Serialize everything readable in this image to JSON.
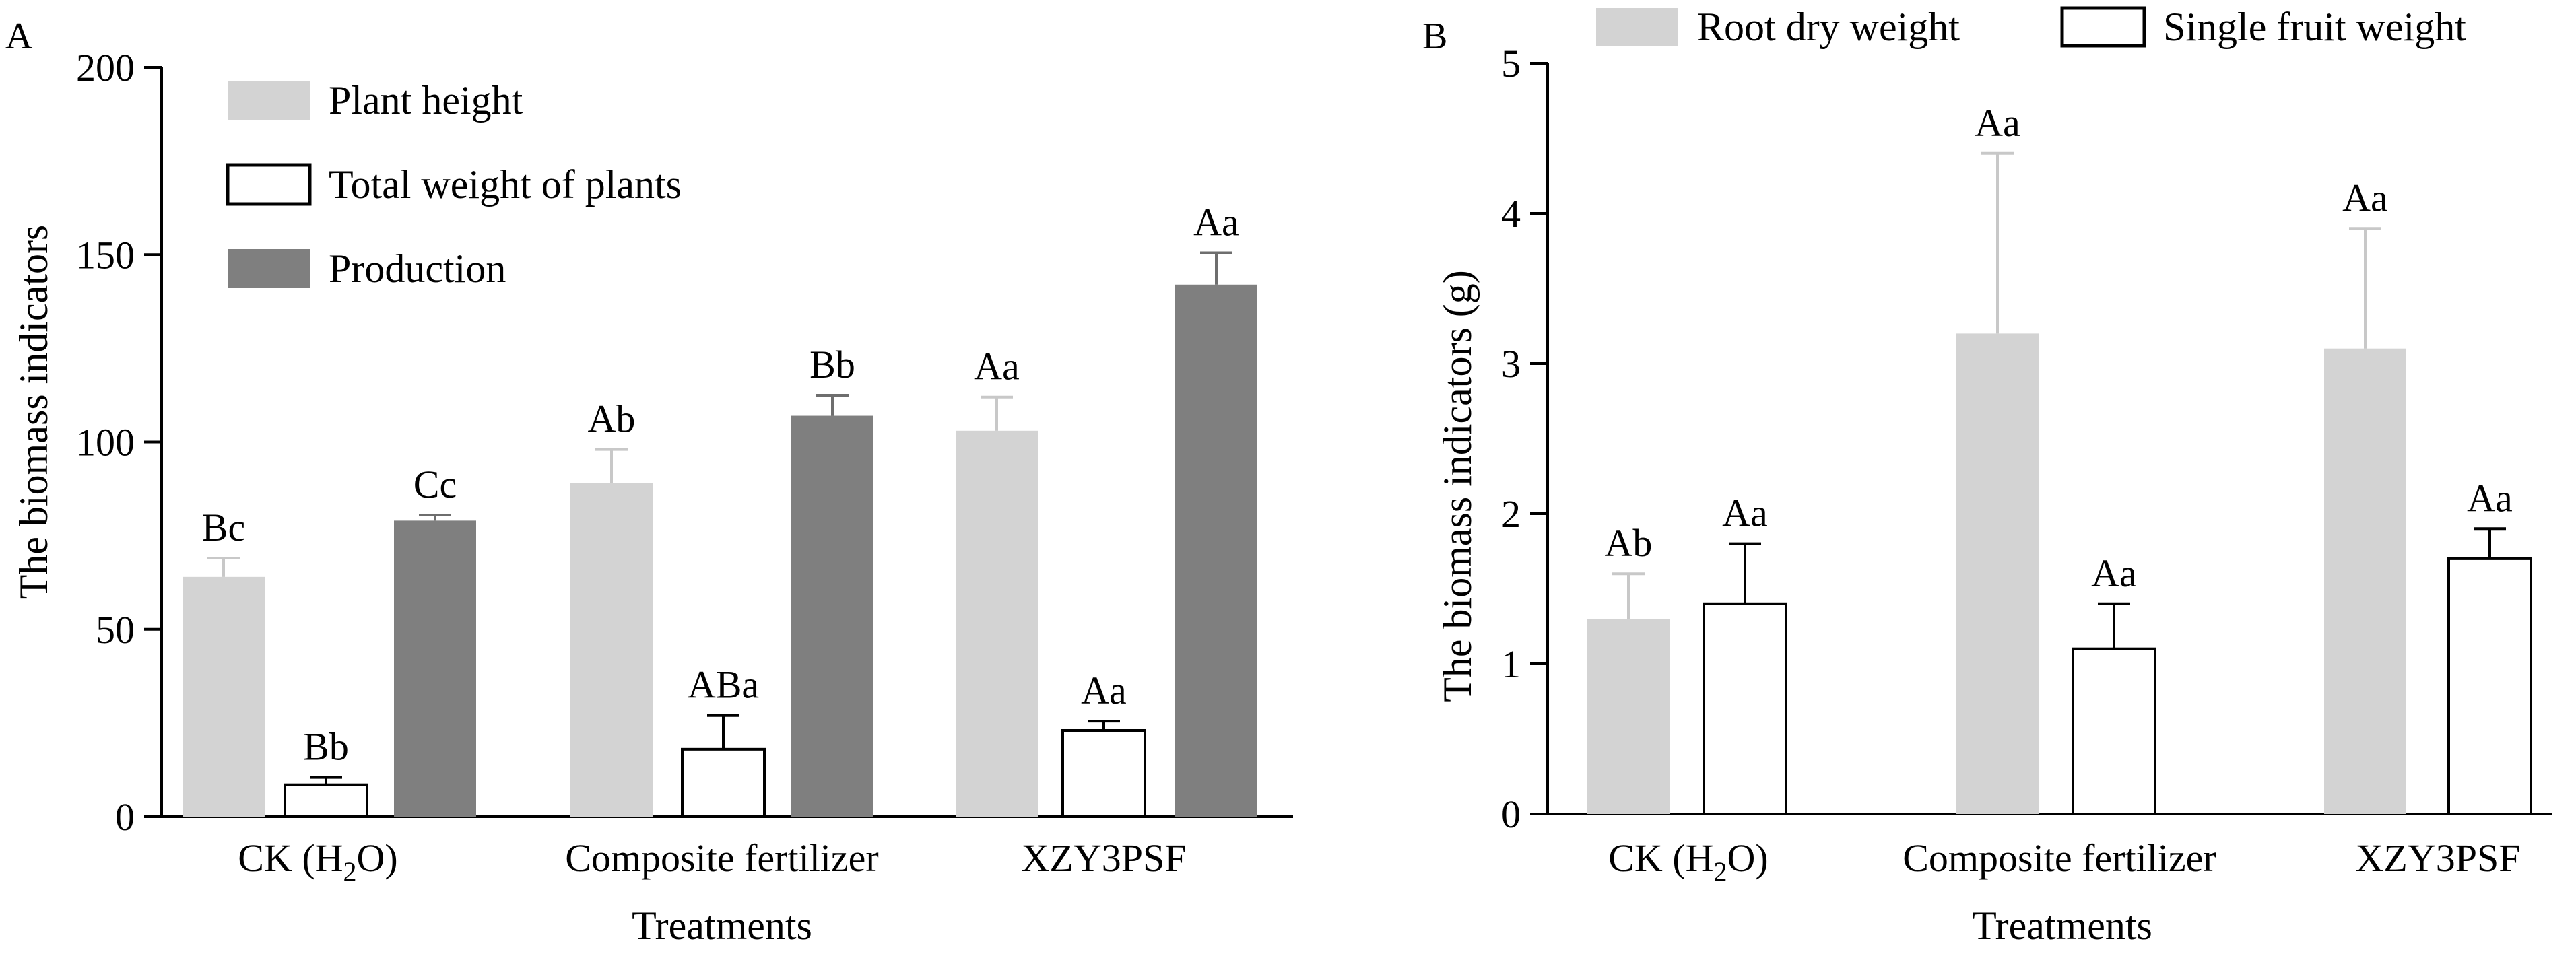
{
  "colors": {
    "light_gray": "#d3d3d3",
    "white": "#ffffff",
    "dark_gray": "#7f7f7f",
    "outline": "#000000"
  },
  "chart_data": [
    {
      "panel_label": "A",
      "type": "bar",
      "ylabel": "The biomass indicators",
      "xlabel": "Treatments",
      "ylim": [
        0,
        200
      ],
      "yticks": [
        0,
        50,
        100,
        150,
        200
      ],
      "grid": false,
      "legend_position": "top-left",
      "categories": [
        "CK (H₂O)",
        "Composite fertilizer",
        "XZY3PSF"
      ],
      "series": [
        {
          "name": "Plant height",
          "style": "light_gray",
          "values": [
            64,
            89,
            103
          ],
          "errors": [
            5,
            9,
            9
          ],
          "letters": [
            "Bc",
            "Ab",
            "Aa"
          ]
        },
        {
          "name": "Total weight of plants",
          "style": "white",
          "values": [
            8.5,
            18,
            23
          ],
          "errors": [
            2,
            9,
            2.5
          ],
          "letters": [
            "Bb",
            "ABa",
            "Aa"
          ]
        },
        {
          "name": "Production",
          "style": "dark_gray",
          "values": [
            79,
            107,
            142
          ],
          "errors": [
            1.5,
            5.5,
            8.5
          ],
          "letters": [
            "Cc",
            "Bb",
            "Aa"
          ]
        }
      ]
    },
    {
      "panel_label": "B",
      "type": "bar",
      "ylabel": "The biomass indicators (g)",
      "xlabel": "Treatments",
      "ylim": [
        0,
        5
      ],
      "yticks": [
        0,
        1,
        2,
        3,
        4,
        5
      ],
      "grid": false,
      "legend_position": "top",
      "categories": [
        "CK (H₂O)",
        "Composite fertilizer",
        "XZY3PSF"
      ],
      "series": [
        {
          "name": "Root dry weight",
          "style": "light_gray",
          "values": [
            1.3,
            3.2,
            3.1
          ],
          "errors": [
            0.3,
            1.2,
            0.8
          ],
          "letters": [
            "Ab",
            "Aa",
            "Aa"
          ]
        },
        {
          "name": "Single fruit weight",
          "style": "white",
          "values": [
            1.4,
            1.1,
            1.7
          ],
          "errors": [
            0.4,
            0.3,
            0.2
          ],
          "letters": [
            "Aa",
            "Aa",
            "Aa"
          ]
        }
      ]
    }
  ]
}
